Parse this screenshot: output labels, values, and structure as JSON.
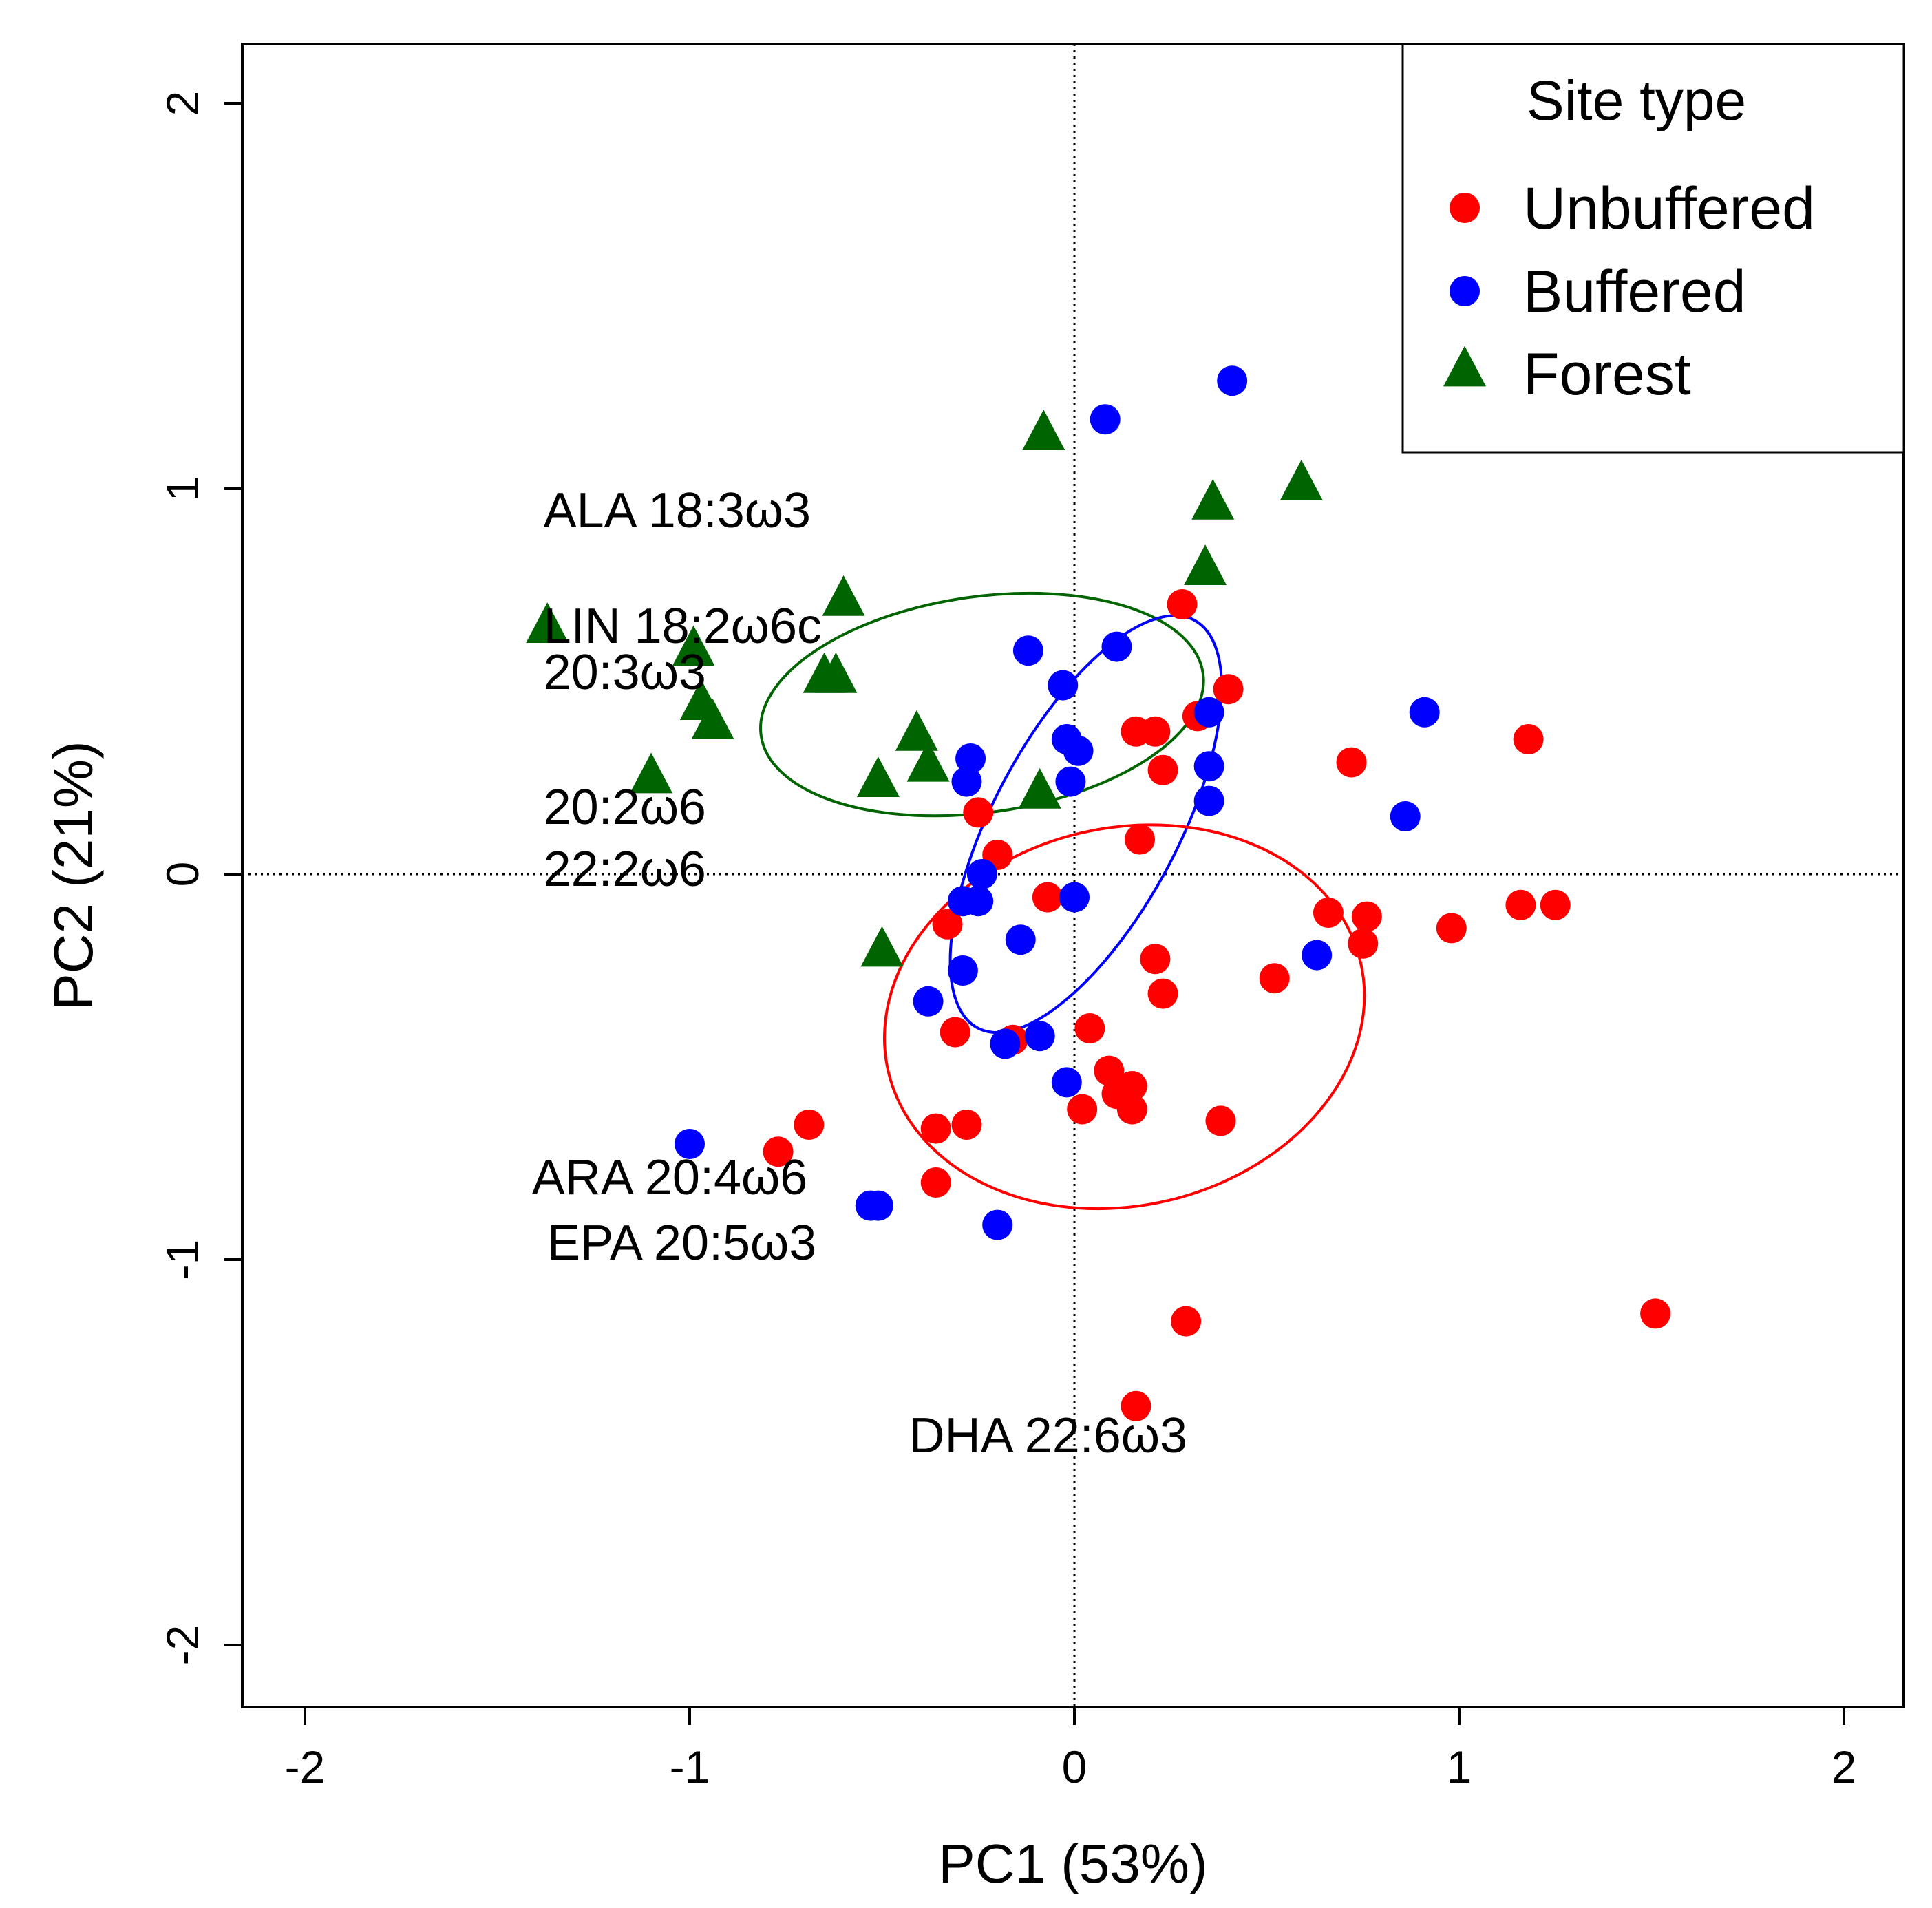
{
  "chart_data": {
    "type": "scatter",
    "xlabel": "PC1 (53%)",
    "ylabel": "PC2 (21%)",
    "xlim": [
      -2.16,
      2.16
    ],
    "ylim": [
      -2.16,
      2.16
    ],
    "x_ticks": [
      -2,
      -1,
      0,
      1,
      2
    ],
    "x_tick_labels": [
      "-2",
      "-1",
      "0",
      "1",
      "2"
    ],
    "y_ticks": [
      -2,
      -1,
      0,
      1,
      2
    ],
    "y_tick_labels": [
      "-2",
      "-1",
      "0",
      "1",
      "2"
    ],
    "reference_lines": {
      "x": 0,
      "y": 0,
      "style": "dotted"
    },
    "legend": {
      "title": "Site type",
      "position": "top-right",
      "entries": [
        {
          "label": "Unbuffered",
          "marker": "circle",
          "color": "#ff0000"
        },
        {
          "label": "Buffered",
          "marker": "circle",
          "color": "#0000ff"
        },
        {
          "label": "Forest",
          "marker": "triangle",
          "color": "#006400"
        }
      ]
    },
    "series": [
      {
        "name": "Unbuffered",
        "marker": "circle",
        "color": "#ff0000",
        "points": [
          [
            0.28,
            0.7
          ],
          [
            0.4,
            0.48
          ],
          [
            0.32,
            0.41
          ],
          [
            0.16,
            0.37
          ],
          [
            0.21,
            0.37
          ],
          [
            0.23,
            0.27
          ],
          [
            0.72,
            0.29
          ],
          [
            1.18,
            0.35
          ],
          [
            -0.25,
            0.16
          ],
          [
            -0.2,
            0.05
          ],
          [
            0.17,
            0.09
          ],
          [
            -0.07,
            -0.06
          ],
          [
            -0.33,
            -0.13
          ],
          [
            0.66,
            -0.1
          ],
          [
            0.76,
            -0.11
          ],
          [
            0.98,
            -0.14
          ],
          [
            1.16,
            -0.08
          ],
          [
            1.25,
            -0.08
          ],
          [
            0.75,
            -0.18
          ],
          [
            0.21,
            -0.22
          ],
          [
            0.52,
            -0.27
          ],
          [
            0.23,
            -0.31
          ],
          [
            -0.31,
            -0.41
          ],
          [
            -0.16,
            -0.43
          ],
          [
            0.04,
            -0.4
          ],
          [
            0.09,
            -0.51
          ],
          [
            0.15,
            -0.55
          ],
          [
            0.11,
            -0.57
          ],
          [
            0.02,
            -0.61
          ],
          [
            0.15,
            -0.61
          ],
          [
            0.38,
            -0.64
          ],
          [
            -0.69,
            -0.65
          ],
          [
            -0.77,
            -0.72
          ],
          [
            -0.36,
            -0.66
          ],
          [
            -0.28,
            -0.65
          ],
          [
            -0.36,
            -0.8
          ],
          [
            0.29,
            -1.16
          ],
          [
            1.51,
            -1.14
          ],
          [
            0.16,
            -1.38
          ]
        ]
      },
      {
        "name": "Buffered",
        "marker": "circle",
        "color": "#0000ff",
        "points": [
          [
            0.41,
            1.28
          ],
          [
            0.08,
            1.18
          ],
          [
            -0.12,
            0.58
          ],
          [
            0.11,
            0.59
          ],
          [
            -0.03,
            0.49
          ],
          [
            0.35,
            0.42
          ],
          [
            0.91,
            0.42
          ],
          [
            -0.02,
            0.35
          ],
          [
            0.01,
            0.32
          ],
          [
            -0.27,
            0.3
          ],
          [
            0.35,
            0.28
          ],
          [
            -0.28,
            0.24
          ],
          [
            -0.01,
            0.24
          ],
          [
            0.35,
            0.19
          ],
          [
            0.86,
            0.15
          ],
          [
            -0.24,
            0.0
          ],
          [
            -0.29,
            -0.07
          ],
          [
            -0.25,
            -0.07
          ],
          [
            0.0,
            -0.06
          ],
          [
            -0.14,
            -0.17
          ],
          [
            0.63,
            -0.21
          ],
          [
            -0.29,
            -0.25
          ],
          [
            -0.38,
            -0.33
          ],
          [
            -0.09,
            -0.42
          ],
          [
            -0.18,
            -0.44
          ],
          [
            -0.02,
            -0.54
          ],
          [
            -1.0,
            -0.7
          ],
          [
            -0.53,
            -0.86
          ],
          [
            -0.51,
            -0.86
          ],
          [
            -0.2,
            -0.91
          ]
        ]
      },
      {
        "name": "Forest",
        "marker": "triangle",
        "color": "#006400",
        "points": [
          [
            -0.08,
            1.14
          ],
          [
            0.59,
            1.01
          ],
          [
            0.36,
            0.96
          ],
          [
            0.34,
            0.79
          ],
          [
            -0.6,
            0.71
          ],
          [
            -1.37,
            0.64
          ],
          [
            -0.99,
            0.58
          ],
          [
            -0.65,
            0.51
          ],
          [
            -0.62,
            0.51
          ],
          [
            -0.97,
            0.44
          ],
          [
            -0.94,
            0.39
          ],
          [
            -0.41,
            0.36
          ],
          [
            -0.38,
            0.28
          ],
          [
            -1.1,
            0.25
          ],
          [
            -0.51,
            0.24
          ],
          [
            -0.09,
            0.21
          ],
          [
            -0.5,
            -0.2
          ]
        ]
      }
    ],
    "ellipses": [
      {
        "group": "Forest",
        "color": "#006400",
        "center": [
          -0.24,
          0.44
        ],
        "semi_axes": [
          0.58,
          0.28
        ],
        "angle_deg": 8
      },
      {
        "group": "Buffered",
        "color": "#0000ff",
        "center": [
          0.03,
          0.13
        ],
        "semi_axes": [
          0.6,
          0.24
        ],
        "angle_deg": 62
      },
      {
        "group": "Unbuffered",
        "color": "#ff0000",
        "center": [
          0.13,
          -0.37
        ],
        "semi_axes": [
          0.63,
          0.49
        ],
        "angle_deg": 13
      }
    ],
    "annotations": [
      {
        "text": "ALA 18:3ω3",
        "x": -1.38,
        "y": 0.9
      },
      {
        "text": "LIN 18:2ω6c",
        "x": -1.38,
        "y": 0.6
      },
      {
        "text": "20:3ω3",
        "x": -1.38,
        "y": 0.48
      },
      {
        "text": "20:2ω6",
        "x": -1.38,
        "y": 0.13
      },
      {
        "text": "22:2ω6",
        "x": -1.38,
        "y": -0.03
      },
      {
        "text": "ARA 20:4ω6",
        "x": -1.41,
        "y": -0.83
      },
      {
        "text": "EPA 20:5ω3",
        "x": -1.37,
        "y": -1.0
      },
      {
        "text": "DHA 22:6ω3",
        "x": -0.43,
        "y": -1.5
      }
    ]
  }
}
